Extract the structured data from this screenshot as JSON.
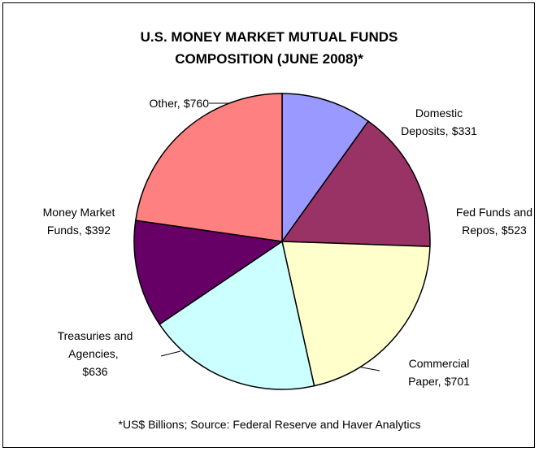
{
  "chart_data": {
    "type": "pie",
    "title": "U.S. MONEY MARKET MUTUAL FUNDS COMPOSITION (JUNE 2008)*",
    "categories": [
      "Domestic Deposits",
      "Fed Funds and Repos",
      "Commercial Paper",
      "Treasuries and Agencies",
      "Money Market Funds",
      "Other"
    ],
    "values": [
      331,
      523,
      701,
      636,
      392,
      760
    ],
    "value_labels": [
      "$331",
      "$523",
      "$701",
      "$636",
      "$392",
      "$760"
    ],
    "colors": [
      "#9999ff",
      "#993366",
      "#ffffcc",
      "#ccffff",
      "#660066",
      "#ff8080"
    ],
    "footnote": "*US$ Billions; Source: Federal Reserve and Haver Analytics"
  }
}
